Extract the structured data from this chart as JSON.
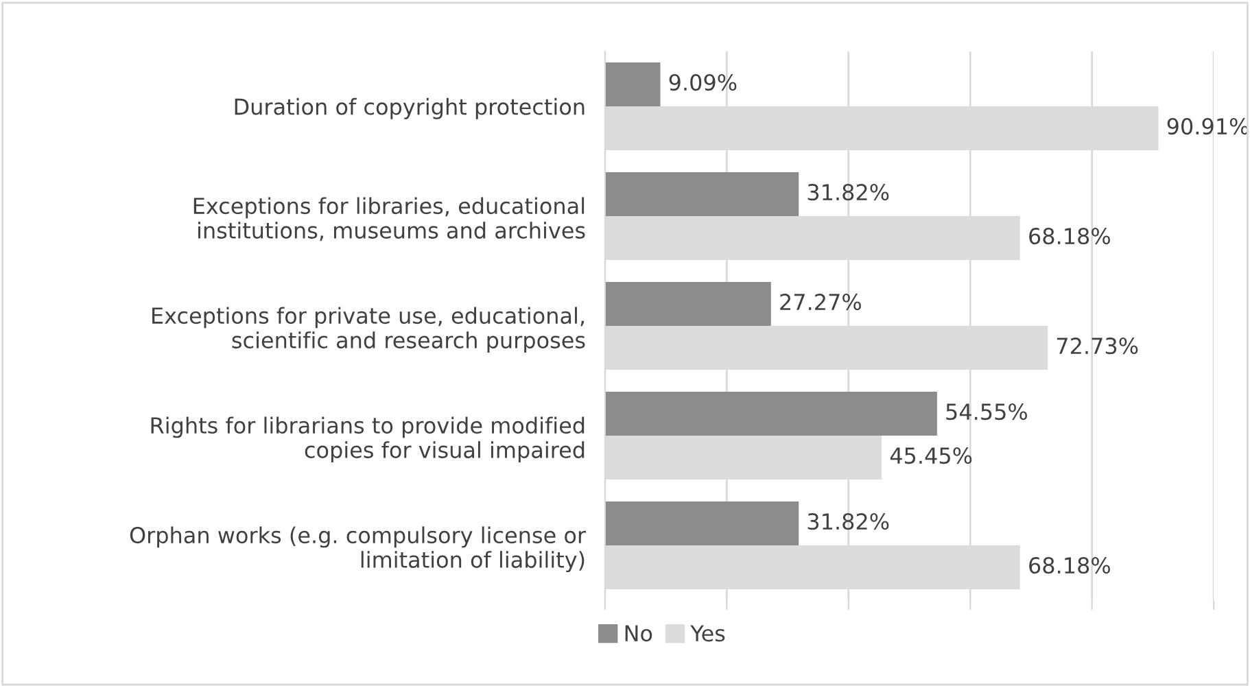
{
  "chart_data": {
    "type": "bar",
    "orientation": "horizontal",
    "categories": [
      "Duration of copyright protection",
      "Exceptions for libraries, educational\ninstitutions, museums and archives",
      "Exceptions for private use, educational,\nscientific and research purposes",
      "Rights for librarians to provide modified\ncopies for visual impaired",
      "Orphan works (e.g. compulsory license or\nlimitation of liability)"
    ],
    "series": [
      {
        "name": "No",
        "color": "#8c8c8c",
        "values": [
          9.09,
          31.82,
          27.27,
          54.55,
          31.82
        ],
        "value_labels": [
          "9.09%",
          "31.82%",
          "27.27%",
          "54.55%",
          "31.82%"
        ]
      },
      {
        "name": "Yes",
        "color": "#dcdcdc",
        "values": [
          90.91,
          68.18,
          72.73,
          45.45,
          68.18
        ],
        "value_labels": [
          "90.91%",
          "68.18%",
          "72.73%",
          "45.45%",
          "68.18%"
        ]
      }
    ],
    "xlim": [
      0,
      100
    ],
    "xticks": [
      {
        "value": 0,
        "label": null
      },
      {
        "value": 20,
        "label": null
      },
      {
        "value": 40,
        "label": null
      },
      {
        "value": 60,
        "label": null
      },
      {
        "value": 80,
        "label": null
      },
      {
        "value": 100,
        "label": null
      }
    ],
    "grid": "x",
    "legend": "bottom"
  }
}
